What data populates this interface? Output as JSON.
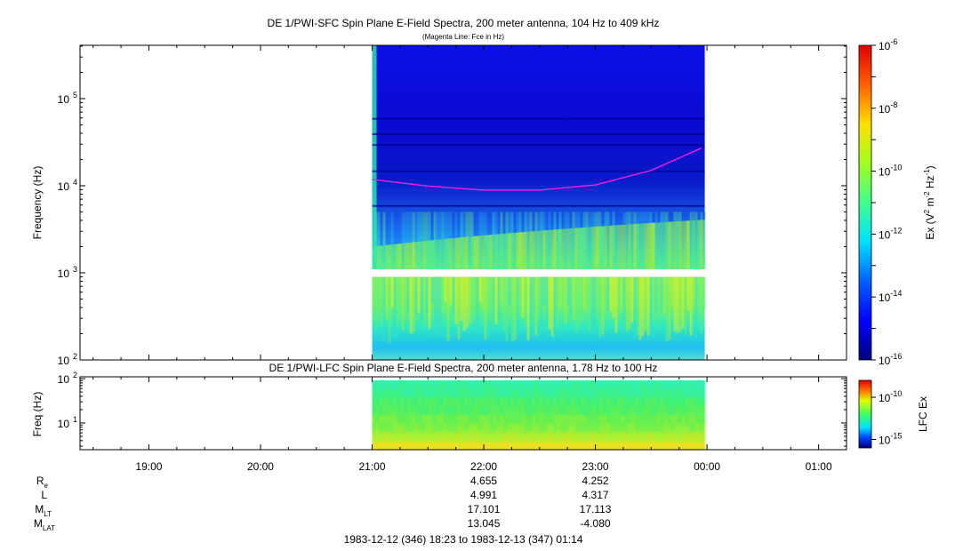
{
  "chart_data": [
    {
      "type": "heatmap",
      "title": "DE 1/PWI-SFC  Spin Plane E-Field Spectra, 200 meter antenna, 104 Hz to 409 kHz",
      "subtitle": "(Magenta Line: Fce in Hz)",
      "ylabel": "Frequency (Hz)",
      "yscale": "log",
      "ylim": [
        100,
        409000
      ],
      "y_ticks": [
        {
          "value": 100,
          "base": "10",
          "exp": "2"
        },
        {
          "value": 1000,
          "base": "10",
          "exp": "3"
        },
        {
          "value": 10000,
          "base": "10",
          "exp": "4"
        },
        {
          "value": 100000,
          "base": "10",
          "exp": "5"
        }
      ],
      "colorbar": {
        "scale": "log",
        "range": [
          1e-16,
          1e-06
        ],
        "label": {
          "main": "Ex (V",
          "sup1": "2",
          "mid": " m",
          "sup2": "-2",
          "mid2": " Hz",
          "sup3": "-1",
          "end": ")"
        },
        "ticks": [
          {
            "value": 1e-06,
            "base": "10",
            "exp": "-6"
          },
          {
            "value": 1e-08,
            "base": "10",
            "exp": "-8"
          },
          {
            "value": 1e-10,
            "base": "10",
            "exp": "-10"
          },
          {
            "value": 1e-12,
            "base": "10",
            "exp": "-12"
          },
          {
            "value": 1e-14,
            "base": "10",
            "exp": "-14"
          },
          {
            "value": 1e-16,
            "base": "10",
            "exp": "-16"
          }
        ]
      },
      "data_coverage": {
        "start_hour": 21.0,
        "end_hour": 23.98,
        "gap_hz": [
          900,
          1100
        ]
      },
      "fce_line": {
        "color": "#e020e0",
        "points": [
          [
            21.0,
            11800
          ],
          [
            21.5,
            9900
          ],
          [
            22.0,
            8900
          ],
          [
            22.5,
            8900
          ],
          [
            23.0,
            10200
          ],
          [
            23.5,
            15000
          ],
          [
            23.95,
            27000
          ]
        ]
      }
    },
    {
      "type": "heatmap",
      "title": "DE 1/PWI-LFC  Spin Plane E-Field Spectra, 200 meter antenna, 1.78 Hz to 100 Hz",
      "ylabel": "Freq (Hz)",
      "yscale": "log",
      "ylim": [
        2.5,
        110
      ],
      "y_ticks": [
        {
          "value": 10,
          "base": "10",
          "exp": "1"
        },
        {
          "value": 100,
          "base": "10",
          "exp": "2"
        }
      ],
      "colorbar": {
        "scale": "log",
        "range": [
          1e-16,
          1e-08
        ],
        "label": "LFC Ex",
        "ticks": [
          {
            "value": 1e-10,
            "base": "10",
            "exp": "-10"
          },
          {
            "value": 1e-15,
            "base": "10",
            "exp": "-15"
          }
        ]
      },
      "data_coverage": {
        "start_hour": 21.0,
        "end_hour": 23.98
      }
    }
  ],
  "time_axis": {
    "xlim_hours": [
      18.383,
      25.25
    ],
    "ticks": [
      {
        "label": "19:00",
        "hour": 19
      },
      {
        "label": "20:00",
        "hour": 20
      },
      {
        "label": "21:00",
        "hour": 21
      },
      {
        "label": "22:00",
        "hour": 22
      },
      {
        "label": "23:00",
        "hour": 23
      },
      {
        "label": "00:00",
        "hour": 24
      },
      {
        "label": "01:00",
        "hour": 25
      }
    ]
  },
  "orbit_table": {
    "rows": [
      {
        "label": "R",
        "sub": "e",
        "values": [
          "4.655",
          "4.252"
        ]
      },
      {
        "label": "L",
        "sub": "",
        "values": [
          "4.991",
          "4.317"
        ]
      },
      {
        "label": "M",
        "sub": "LT",
        "values": [
          "17.101",
          "17.113"
        ]
      },
      {
        "label": "M",
        "sub": "LAT",
        "values": [
          "13.045",
          "-4.080"
        ]
      }
    ],
    "value_hours": [
      22,
      23
    ]
  },
  "time_range_text": "1983-12-12 (346) 18:23 to 1983-12-13 (347) 01:14"
}
